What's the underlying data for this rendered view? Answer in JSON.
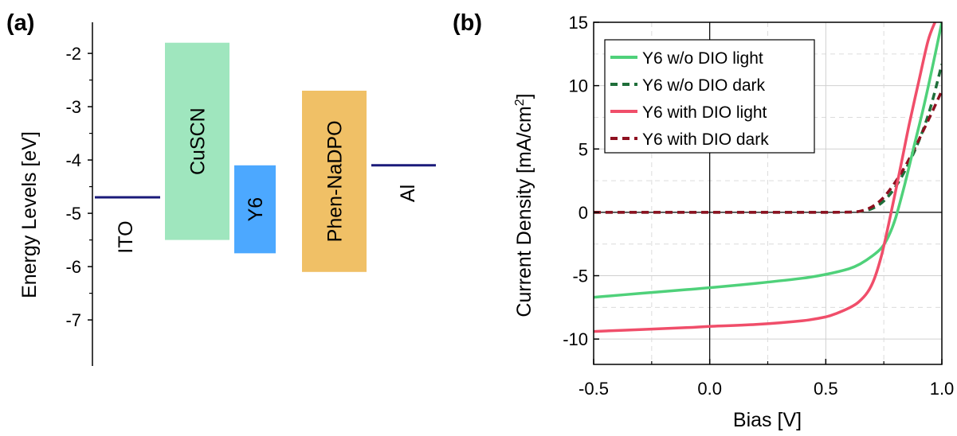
{
  "panel_a_label": "(a)",
  "panel_b_label": "(b)",
  "colors": {
    "level_line": "#1a1a7a",
    "cuscn": "#9fe6be",
    "y6": "#4ca8ff",
    "phen": "#f0c066",
    "wo_light": "#4fd17a",
    "wo_dark": "#1f6e3a",
    "with_light": "#f04e6a",
    "with_dark": "#8e1020"
  },
  "chart_data": [
    {
      "type": "bar",
      "title": "",
      "xlabel": "",
      "ylabel": "Energy Levels [eV]",
      "ylim": [
        -7.55,
        -1.2
      ],
      "yticks": [
        "-2",
        "-3",
        "-4",
        "-5",
        "-6",
        "-7"
      ],
      "grid": false,
      "lines": [
        {
          "label": "ITO",
          "value": -4.7
        },
        {
          "label": "Al",
          "value": -4.1
        }
      ],
      "bars": [
        {
          "label": "CuSCN",
          "top": -1.8,
          "bottom": -5.5
        },
        {
          "label": "Y6",
          "top": -4.1,
          "bottom": -5.75
        },
        {
          "label": "Phen-NaDPO",
          "top": -2.7,
          "bottom": -6.1
        }
      ]
    },
    {
      "type": "line",
      "title": "",
      "xlabel": "Bias [V]",
      "ylabel": "Current Density [mA/cm",
      "ylabel_sup": "2",
      "ylabel_suffix": "]",
      "xlim": [
        -0.5,
        1.0
      ],
      "ylim": [
        -12,
        15
      ],
      "xticks": [
        "-0.5",
        "0.0",
        "0.5",
        "1.0"
      ],
      "yticks": [
        "-10",
        "-5",
        "0",
        "5",
        "10",
        "15"
      ],
      "grid": true,
      "legend_position": "top-right",
      "series": [
        {
          "name": "Y6 w/o DIO light",
          "style": "solid",
          "x": [
            -0.5,
            -0.3,
            -0.1,
            0.0,
            0.2,
            0.4,
            0.5,
            0.6,
            0.65,
            0.7,
            0.74,
            0.77,
            0.8,
            0.84,
            0.88,
            0.92,
            0.96,
            1.0
          ],
          "y": [
            -6.7,
            -6.4,
            -6.1,
            -5.95,
            -5.6,
            -5.2,
            -4.9,
            -4.45,
            -4.05,
            -3.45,
            -2.8,
            -1.9,
            -0.5,
            2.2,
            5.2,
            8.2,
            11.5,
            15.0
          ]
        },
        {
          "name": "Y6 w/o DIO dark",
          "style": "dashed",
          "x": [
            -0.5,
            -0.25,
            0.0,
            0.25,
            0.5,
            0.6,
            0.65,
            0.7,
            0.75,
            0.8,
            0.85,
            0.9,
            0.95,
            1.0
          ],
          "y": [
            0.0,
            0.0,
            0.0,
            0.0,
            0.0,
            0.02,
            0.08,
            0.3,
            0.9,
            2.0,
            3.6,
            5.6,
            8.2,
            11.7
          ]
        },
        {
          "name": "Y6 with DIO light",
          "style": "solid",
          "x": [
            -0.5,
            -0.3,
            -0.1,
            0.0,
            0.2,
            0.4,
            0.5,
            0.55,
            0.6,
            0.64,
            0.68,
            0.71,
            0.74,
            0.77,
            0.8,
            0.83,
            0.86,
            0.9,
            0.94,
            0.97
          ],
          "y": [
            -9.4,
            -9.25,
            -9.1,
            -9.0,
            -8.85,
            -8.55,
            -8.25,
            -7.95,
            -7.55,
            -7.1,
            -6.3,
            -5.2,
            -3.4,
            -1.0,
            1.6,
            4.3,
            7.0,
            10.3,
            13.5,
            15.0
          ]
        },
        {
          "name": "Y6 with DIO dark",
          "style": "dashed",
          "x": [
            -0.5,
            -0.25,
            0.0,
            0.25,
            0.5,
            0.6,
            0.65,
            0.7,
            0.75,
            0.8,
            0.85,
            0.9,
            0.95,
            1.0
          ],
          "y": [
            0.0,
            0.0,
            0.0,
            0.0,
            0.0,
            0.02,
            0.1,
            0.45,
            1.2,
            2.4,
            3.9,
            5.7,
            7.6,
            9.6
          ]
        }
      ]
    }
  ]
}
